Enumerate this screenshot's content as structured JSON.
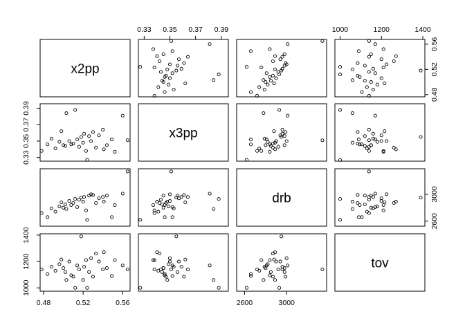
{
  "chart_data": {
    "type": "scatter",
    "subtype": "scatterplot-matrix",
    "title": "",
    "variables": [
      "x2pp",
      "x3pp",
      "drb",
      "tov"
    ],
    "ranges": {
      "x2pp": [
        0.4765,
        0.5675
      ],
      "x3pp": [
        0.3255,
        0.3955
      ],
      "drb": [
        2525,
        3380
      ],
      "tov": [
        975,
        1410
      ]
    },
    "ticks": {
      "x2pp": [
        0.48,
        0.52,
        0.56
      ],
      "x3pp": [
        0.33,
        0.35,
        0.37,
        0.39
      ],
      "drb": [
        2600,
        3000
      ],
      "tov": [
        1000,
        1200,
        1400
      ]
    },
    "tick_labels": {
      "x2pp": [
        "0.48",
        "0.52",
        "0.56"
      ],
      "x3pp": [
        "0.33",
        "0.35",
        "0.37",
        "0.39"
      ],
      "drb": [
        "2600",
        "3000"
      ],
      "tov": [
        "1000",
        "1200",
        "1400"
      ]
    },
    "grid": false,
    "points": [
      {
        "x2pp": 0.478,
        "x3pp": 0.338,
        "drb": 2720,
        "tov": 1140
      },
      {
        "x2pp": 0.484,
        "x3pp": 0.346,
        "drb": 2660,
        "tov": 1105
      },
      {
        "x2pp": 0.488,
        "x3pp": 0.353,
        "drb": 2790,
        "tov": 1160
      },
      {
        "x2pp": 0.492,
        "x3pp": 0.341,
        "drb": 2740,
        "tov": 1130
      },
      {
        "x2pp": 0.496,
        "x3pp": 0.349,
        "drb": 2820,
        "tov": 1180
      },
      {
        "x2pp": 0.498,
        "x3pp": 0.362,
        "drb": 2880,
        "tov": 1215
      },
      {
        "x2pp": 0.5,
        "x3pp": 0.345,
        "drb": 2800,
        "tov": 1150
      },
      {
        "x2pp": 0.502,
        "x3pp": 0.344,
        "drb": 2850,
        "tov": 1120
      },
      {
        "x2pp": 0.503,
        "x3pp": 0.384,
        "drb": 2780,
        "tov": 1060
      },
      {
        "x2pp": 0.506,
        "x3pp": 0.35,
        "drb": 2900,
        "tov": 1200
      },
      {
        "x2pp": 0.508,
        "x3pp": 0.346,
        "drb": 2840,
        "tov": 1095
      },
      {
        "x2pp": 0.51,
        "x3pp": 0.347,
        "drb": 2870,
        "tov": 1085
      },
      {
        "x2pp": 0.512,
        "x3pp": 0.388,
        "drb": 2930,
        "tov": 1000
      },
      {
        "x2pp": 0.514,
        "x3pp": 0.352,
        "drb": 2810,
        "tov": 1170
      },
      {
        "x2pp": 0.516,
        "x3pp": 0.343,
        "drb": 2920,
        "tov": 1140
      },
      {
        "x2pp": 0.518,
        "x3pp": 0.355,
        "drb": 2950,
        "tov": 1390
      },
      {
        "x2pp": 0.52,
        "x3pp": 0.348,
        "drb": 2890,
        "tov": 1060
      },
      {
        "x2pp": 0.521,
        "x3pp": 0.359,
        "drb": 2960,
        "tov": 1160
      },
      {
        "x2pp": 0.523,
        "x3pp": 0.338,
        "drb": 2760,
        "tov": 1210
      },
      {
        "x2pp": 0.524,
        "x3pp": 0.327,
        "drb": 2620,
        "tov": 1000
      },
      {
        "x2pp": 0.526,
        "x3pp": 0.356,
        "drb": 2980,
        "tov": 1120
      },
      {
        "x2pp": 0.528,
        "x3pp": 0.35,
        "drb": 3000,
        "tov": 1225
      },
      {
        "x2pp": 0.53,
        "x3pp": 0.361,
        "drb": 2990,
        "tov": 1085
      },
      {
        "x2pp": 0.533,
        "x3pp": 0.342,
        "drb": 2870,
        "tov": 1260
      },
      {
        "x2pp": 0.536,
        "x3pp": 0.357,
        "drb": 2940,
        "tov": 1200
      },
      {
        "x2pp": 0.54,
        "x3pp": 0.364,
        "drb": 2960,
        "tov": 1140
      },
      {
        "x2pp": 0.541,
        "x3pp": 0.34,
        "drb": 2890,
        "tov": 1270
      },
      {
        "x2pp": 0.544,
        "x3pp": 0.345,
        "drb": 2980,
        "tov": 1150
      },
      {
        "x2pp": 0.549,
        "x3pp": 0.352,
        "drb": 2660,
        "tov": 1090
      },
      {
        "x2pp": 0.552,
        "x3pp": 0.337,
        "drb": 2840,
        "tov": 1210
      },
      {
        "x2pp": 0.56,
        "x3pp": 0.381,
        "drb": 3010,
        "tov": 1170
      },
      {
        "x2pp": 0.565,
        "x3pp": 0.351,
        "drb": 3340,
        "tov": 1140
      }
    ]
  }
}
